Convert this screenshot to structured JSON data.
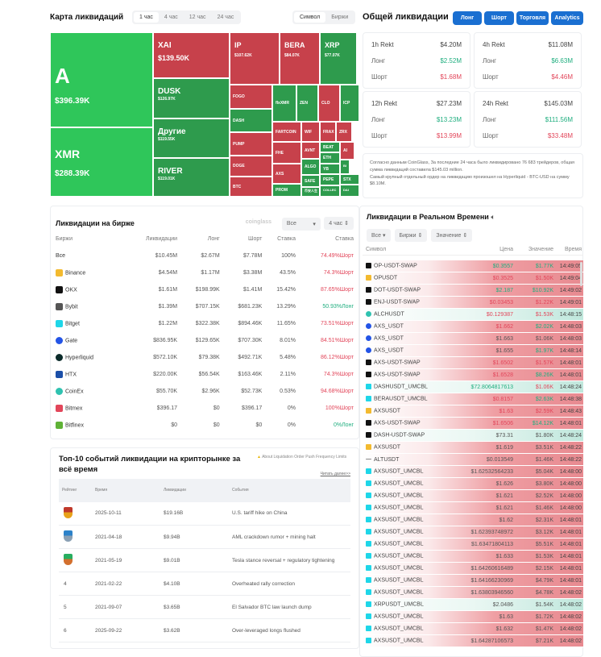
{
  "heatmap": {
    "title": "Карта ликвидаций",
    "periods": [
      "1 час",
      "4 час",
      "12 час",
      "24 час"
    ],
    "active_period": "1 час",
    "modes": [
      "Символ",
      "Биржи"
    ],
    "active_mode": "Символ",
    "cells": [
      {
        "name": "A",
        "value": "$396.39K",
        "side": "long"
      },
      {
        "name": "XMR",
        "value": "$288.39K",
        "side": "long"
      },
      {
        "name": "XAI",
        "value": "$139.50K",
        "side": "short"
      },
      {
        "name": "DUSK",
        "value": "$126.97K",
        "side": "long"
      },
      {
        "name": "Другие",
        "value": "$119.55K",
        "side": "long"
      },
      {
        "name": "RIVER",
        "value": "$119.01K",
        "side": "long"
      },
      {
        "name": "IP",
        "value": "$107.62K",
        "side": "short"
      },
      {
        "name": "BERA",
        "value": "$84.07K",
        "side": "short"
      },
      {
        "name": "XRP",
        "value": "$77.07K",
        "side": "long"
      },
      {
        "name": "FOGO",
        "side": "short"
      },
      {
        "name": "DASH",
        "side": "long"
      },
      {
        "name": "PUMP",
        "side": "short"
      },
      {
        "name": "DOGE",
        "side": "short"
      },
      {
        "name": "BTC",
        "side": "short"
      },
      {
        "name": "flxXMR",
        "side": "long"
      },
      {
        "name": "ZEN",
        "side": "long"
      },
      {
        "name": "CLO",
        "side": "short"
      },
      {
        "name": "ICP",
        "side": "long"
      },
      {
        "name": "FARTCOIN",
        "side": "short"
      },
      {
        "name": "WIF",
        "side": "short"
      },
      {
        "name": "FRAX",
        "side": "short"
      },
      {
        "name": "ZRX",
        "side": "short"
      },
      {
        "name": "FHE",
        "side": "short"
      },
      {
        "name": "AXS",
        "side": "short"
      },
      {
        "name": "PROM",
        "side": "long"
      },
      {
        "name": "AVNT",
        "side": "short"
      },
      {
        "name": "ALGO",
        "side": "long"
      },
      {
        "name": "SAFE",
        "side": "long"
      },
      {
        "name": "币安人生",
        "side": "long"
      },
      {
        "name": "BEAT",
        "side": "long"
      },
      {
        "name": "AI",
        "side": "short"
      },
      {
        "name": "ETH",
        "side": "long"
      },
      {
        "name": "YB",
        "side": "long"
      },
      {
        "name": "BI",
        "side": "long"
      },
      {
        "name": "PEPE",
        "side": "long"
      },
      {
        "name": "STX",
        "side": "long"
      },
      {
        "name": "COLLEC",
        "side": "long"
      },
      {
        "name": "DAI",
        "side": "long"
      }
    ]
  },
  "total": {
    "title": "Общей ликвидации",
    "buttons": [
      "Лонг",
      "Шорт",
      "Торговля",
      "Analytics"
    ],
    "cards": [
      {
        "label": "1h Rekt",
        "total": "$4.20M",
        "long": "$2.52M",
        "short": "$1.68M"
      },
      {
        "label": "4h Rekt",
        "total": "$11.08M",
        "long": "$6.63M",
        "short": "$4.46M"
      },
      {
        "label": "12h Rekt",
        "total": "$27.23M",
        "long": "$13.23M",
        "short": "$13.99M"
      },
      {
        "label": "24h Rekt",
        "total": "$145.03M",
        "long": "$111.56M",
        "short": "$33.48M"
      }
    ],
    "long_label": "Лонг",
    "short_label": "Шорт",
    "summary1": "Согласно данным CoinGlass, За последние 24 часа было ликвидировано 76 683 трейдеров, общая сумма ликвидаций составила $145.03 million.",
    "summary2": "Самый крупный отдельный ордер на ликвидацию произошел на Hyperliquid - BTC-USD на сумму $8.10M."
  },
  "exchanges": {
    "title": "Ликвидации на бирже",
    "filter": "Все",
    "period": "4 час",
    "watermark": "coinglass",
    "columns": [
      "Биржи",
      "Ликвидации",
      "Лонг",
      "Шорт",
      "Ставка",
      "Ставка"
    ],
    "rows": [
      {
        "name": "Все",
        "liq": "$10.45M",
        "long": "$2.67M",
        "short": "$7.78M",
        "rate": "100%",
        "ratio": "74.49%Шорт",
        "dir": "short",
        "icon": "",
        "color": ""
      },
      {
        "name": "Binance",
        "liq": "$4.54M",
        "long": "$1.17M",
        "short": "$3.38M",
        "rate": "43.5%",
        "ratio": "74.3%Шорт",
        "dir": "short",
        "icon": "binance-icon",
        "color": "#f3ba2f"
      },
      {
        "name": "OKX",
        "liq": "$1.61M",
        "long": "$198.99K",
        "short": "$1.41M",
        "rate": "15.42%",
        "ratio": "87.65%Шорт",
        "dir": "short",
        "icon": "okx-icon",
        "color": "#111111"
      },
      {
        "name": "Bybit",
        "liq": "$1.39M",
        "long": "$707.15K",
        "short": "$681.23K",
        "rate": "13.29%",
        "ratio": "50.93%Лонг",
        "dir": "long",
        "icon": "bybit-icon",
        "color": "#555555"
      },
      {
        "name": "Bitget",
        "liq": "$1.22M",
        "long": "$322.38K",
        "short": "$894.46K",
        "rate": "11.65%",
        "ratio": "73.51%Шорт",
        "dir": "short",
        "icon": "bitget-icon",
        "color": "#1ed6e8"
      },
      {
        "name": "Gate",
        "liq": "$836.95K",
        "long": "$129.65K",
        "short": "$707.30K",
        "rate": "8.01%",
        "ratio": "84.51%Шорт",
        "dir": "short",
        "icon": "gate-icon",
        "color": "#2354e6"
      },
      {
        "name": "Hyperliquid",
        "liq": "$572.10K",
        "long": "$79.38K",
        "short": "$492.71K",
        "rate": "5.48%",
        "ratio": "86.12%Шорт",
        "dir": "short",
        "icon": "hyperliquid-icon",
        "color": "#0b2b2a"
      },
      {
        "name": "HTX",
        "liq": "$220.00K",
        "long": "$56.54K",
        "short": "$163.46K",
        "rate": "2.11%",
        "ratio": "74.3%Шорт",
        "dir": "short",
        "icon": "htx-icon",
        "color": "#1b4fa8"
      },
      {
        "name": "CoinEx",
        "liq": "$55.70K",
        "long": "$2.96K",
        "short": "$52.73K",
        "rate": "0.53%",
        "ratio": "94.68%Шорт",
        "dir": "short",
        "icon": "coinex-icon",
        "color": "#2fc2b0"
      },
      {
        "name": "Bitmex",
        "liq": "$396.17",
        "long": "$0",
        "short": "$396.17",
        "rate": "0%",
        "ratio": "100%Шорт",
        "dir": "short",
        "icon": "bitmex-icon",
        "color": "#e2465a"
      },
      {
        "name": "Bitfinex",
        "liq": "$0",
        "long": "$0",
        "short": "$0",
        "rate": "0%",
        "ratio": "0%Лонг",
        "dir": "long",
        "icon": "bitfinex-icon",
        "color": "#5fb236"
      }
    ]
  },
  "top10": {
    "title": "Топ-10 событий ликвидации на крипторынке за всё время",
    "notice": "About Liquidation Order Push Frequency Limits",
    "read_more": "Читать далее>>",
    "columns": [
      "Рейтинг",
      "Время",
      "Ликвидации",
      "События"
    ],
    "rows": [
      {
        "rank": "1",
        "medal": "gold",
        "date": "2025-10-11",
        "amount": "$19.16B",
        "event": "U.S. tariff hike on China"
      },
      {
        "rank": "2",
        "medal": "silver",
        "date": "2021-04-18",
        "amount": "$9.94B",
        "event": "AML crackdown rumor + mining halt"
      },
      {
        "rank": "3",
        "medal": "bronze",
        "date": "2021-05-19",
        "amount": "$9.01B",
        "event": "Tesla stance reversal + regulatory tightening"
      },
      {
        "rank": "4",
        "date": "2021-02-22",
        "amount": "$4.10B",
        "event": "Overheated rally correction"
      },
      {
        "rank": "5",
        "date": "2021-09-07",
        "amount": "$3.65B",
        "event": "El Salvador BTC law launch dump"
      },
      {
        "rank": "6",
        "date": "2025-09-22",
        "amount": "$3.62B",
        "event": "Over-leveraged longs flushed"
      }
    ]
  },
  "realtime": {
    "title": "Ликвидации в Реальном Времени",
    "filters": [
      "Все",
      "Биржи",
      "Значение"
    ],
    "columns": [
      "Символ",
      "Цена",
      "Значение",
      "Время"
    ],
    "rows": [
      [
        "OP-USDT-SWAP",
        "okx",
        "$0.3557",
        "up",
        "$1.77K",
        "up",
        "14:49:05",
        "red"
      ],
      [
        "OPUSDT",
        "binance",
        "$0.3525",
        "dn",
        "$1.50K",
        "dn",
        "14:49:04",
        "red"
      ],
      [
        "DOT-USDT-SWAP",
        "okx",
        "$2.187",
        "up",
        "$10.92K",
        "up",
        "14:49:02",
        "red"
      ],
      [
        "ENJ-USDT-SWAP",
        "okx",
        "$0.03453",
        "dn",
        "$1.22K",
        "dn",
        "14:49:01",
        "red"
      ],
      [
        "ALCHUSDT",
        "coinex",
        "$0.129387",
        "dn",
        "$1.53K",
        "dn",
        "14:48:15",
        "green"
      ],
      [
        "AXS_USDT",
        "gate",
        "$1.662",
        "dn",
        "$2.02K",
        "up",
        "14:48:03",
        "red"
      ],
      [
        "AXS_USDT",
        "gate",
        "$1.663",
        "",
        "$1.06K",
        "",
        "14:48:03",
        "red"
      ],
      [
        "AXS_USDT",
        "gate",
        "$1.655",
        "",
        "$1.97K",
        "up",
        "14:48:14",
        "red"
      ],
      [
        "AXS-USDT-SWAP",
        "okx",
        "$1.6502",
        "dn",
        "$1.57K",
        "dn",
        "14:48:01",
        "red"
      ],
      [
        "AXS-USDT-SWAP",
        "okx",
        "$1.6528",
        "dn",
        "$8.26K",
        "up",
        "14:48:01",
        "red"
      ],
      [
        "DASHUSDT_UMCBL",
        "bitget",
        "$72.8064817613",
        "up",
        "$1.06K",
        "dn",
        "14:48:24",
        "green"
      ],
      [
        "BERAUSDT_UMCBL",
        "bitget",
        "$0.8157",
        "dn",
        "$2.63K",
        "up",
        "14:48:38",
        "red"
      ],
      [
        "AXSUSDT",
        "binance",
        "$1.63",
        "dn",
        "$2.59K",
        "dn",
        "14:48:43",
        "red"
      ],
      [
        "AXS-USDT-SWAP",
        "okx",
        "$1.6506",
        "dn",
        "$14.12K",
        "up",
        "14:48:01",
        "red"
      ],
      [
        "DASH-USDT-SWAP",
        "okx",
        "$73.31",
        "",
        "$1.80K",
        "",
        "14:48:24",
        "green"
      ],
      [
        "AXSUSDT",
        "binance",
        "$1.619",
        "",
        "$3.51K",
        "",
        "14:48:22",
        "red"
      ],
      [
        "ALTUSDT",
        "other",
        "$0.013549",
        "",
        "$1.46K",
        "",
        "14:48:22",
        "red"
      ],
      [
        "AXSUSDT_UMCBL",
        "bitget",
        "$1.62532564233",
        "",
        "$5.04K",
        "",
        "14:48:00",
        "red"
      ],
      [
        "AXSUSDT_UMCBL",
        "bitget",
        "$1.626",
        "",
        "$3.80K",
        "",
        "14:48:00",
        "red"
      ],
      [
        "AXSUSDT_UMCBL",
        "bitget",
        "$1.621",
        "",
        "$2.52K",
        "",
        "14:48:00",
        "red"
      ],
      [
        "AXSUSDT_UMCBL",
        "bitget",
        "$1.621",
        "",
        "$1.46K",
        "",
        "14:48:00",
        "red"
      ],
      [
        "AXSUSDT_UMCBL",
        "bitget",
        "$1.62",
        "",
        "$2.31K",
        "",
        "14:48:01",
        "red"
      ],
      [
        "AXSUSDT_UMCBL",
        "bitget",
        "$1.62393748972",
        "",
        "$3.12K",
        "",
        "14:48:01",
        "red"
      ],
      [
        "AXSUSDT_UMCBL",
        "bitget",
        "$1.63471804113",
        "",
        "$5.51K",
        "",
        "14:48:01",
        "red"
      ],
      [
        "AXSUSDT_UMCBL",
        "bitget",
        "$1.633",
        "",
        "$1.53K",
        "",
        "14:48:01",
        "red"
      ],
      [
        "AXSUSDT_UMCBL",
        "bitget",
        "$1.64260616489",
        "",
        "$2.15K",
        "",
        "14:48:01",
        "red"
      ],
      [
        "AXSUSDT_UMCBL",
        "bitget",
        "$1.64166230969",
        "",
        "$4.79K",
        "",
        "14:48:01",
        "red"
      ],
      [
        "AXSUSDT_UMCBL",
        "bitget",
        "$1.63803946560",
        "",
        "$4.78K",
        "",
        "14:48:02",
        "red"
      ],
      [
        "XRPUSDT_UMCBL",
        "bitget",
        "$2.0486",
        "",
        "$1.54K",
        "",
        "14:48:02",
        "green"
      ],
      [
        "AXSUSDT_UMCBL",
        "bitget",
        "$1.63",
        "",
        "$1.72K",
        "",
        "14:48:02",
        "red"
      ],
      [
        "AXSUSDT_UMCBL",
        "bitget",
        "$1.632",
        "",
        "$1.47K",
        "",
        "14:48:02",
        "red"
      ],
      [
        "AXSUSDT_UMCBL",
        "bitget",
        "$1.64287106573",
        "",
        "$7.21K",
        "",
        "14:48:02",
        "red"
      ]
    ]
  },
  "colors": {
    "long": "#1fae7f",
    "short": "#e2465a",
    "accent": "#1a6fd1",
    "treemap_long_big": "#2fc65a",
    "treemap_long": "#2e9b4d",
    "treemap_short": "#c7414b"
  }
}
